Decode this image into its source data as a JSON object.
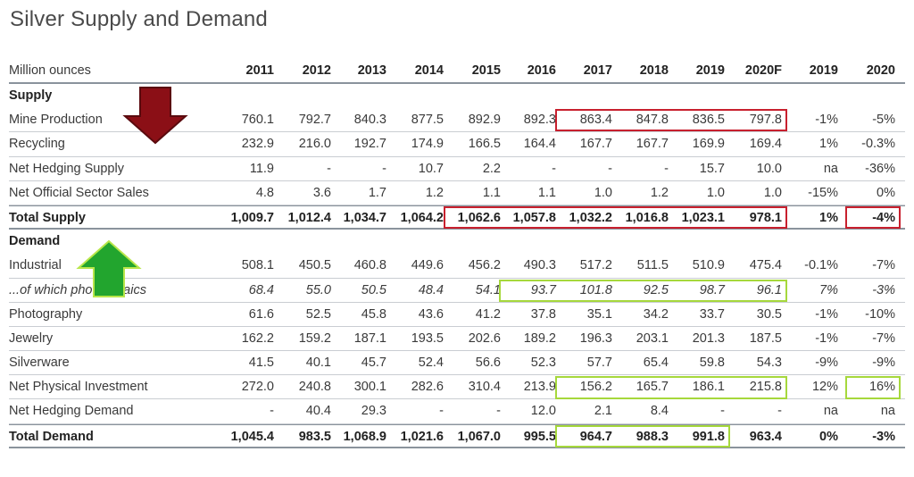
{
  "title": "Silver Supply and Demand",
  "header": {
    "label": "Million ounces",
    "columns": [
      "2011",
      "2012",
      "2013",
      "2014",
      "2015",
      "2016",
      "2017",
      "2018",
      "2019",
      "2020F",
      "2019",
      "2020"
    ]
  },
  "rows": [
    {
      "type": "section",
      "label": "Supply"
    },
    {
      "type": "data",
      "label": "Mine Production",
      "values": [
        "760.1",
        "792.7",
        "840.3",
        "877.5",
        "892.9",
        "892.3",
        "863.4",
        "847.8",
        "836.5",
        "797.8",
        "-1%",
        "-5%"
      ]
    },
    {
      "type": "data",
      "label": "Recycling",
      "values": [
        "232.9",
        "216.0",
        "192.7",
        "174.9",
        "166.5",
        "164.4",
        "167.7",
        "167.7",
        "169.9",
        "169.4",
        "1%",
        "-0.3%"
      ]
    },
    {
      "type": "data",
      "label": "Net Hedging Supply",
      "values": [
        "11.9",
        "-",
        "-",
        "10.7",
        "2.2",
        "-",
        "-",
        "-",
        "15.7",
        "10.0",
        "na",
        "-36%"
      ]
    },
    {
      "type": "data",
      "label": "Net Official Sector Sales",
      "values": [
        "4.8",
        "3.6",
        "1.7",
        "1.2",
        "1.1",
        "1.1",
        "1.0",
        "1.2",
        "1.0",
        "1.0",
        "-15%",
        "0%"
      ]
    },
    {
      "type": "total",
      "label": "Total Supply",
      "values": [
        "1,009.7",
        "1,012.4",
        "1,034.7",
        "1,064.2",
        "1,062.6",
        "1,057.8",
        "1,032.2",
        "1,016.8",
        "1,023.1",
        "978.1",
        "1%",
        "-4%"
      ]
    },
    {
      "type": "section",
      "label": "Demand"
    },
    {
      "type": "data",
      "label": "Industrial",
      "values": [
        "508.1",
        "450.5",
        "460.8",
        "449.6",
        "456.2",
        "490.3",
        "517.2",
        "511.5",
        "510.9",
        "475.4",
        "-0.1%",
        "-7%"
      ]
    },
    {
      "type": "italic",
      "label": "...of which photovoltaics",
      "values": [
        "68.4",
        "55.0",
        "50.5",
        "48.4",
        "54.1",
        "93.7",
        "101.8",
        "92.5",
        "98.7",
        "96.1",
        "7%",
        "-3%"
      ]
    },
    {
      "type": "data",
      "label": "Photography",
      "values": [
        "61.6",
        "52.5",
        "45.8",
        "43.6",
        "41.2",
        "37.8",
        "35.1",
        "34.2",
        "33.7",
        "30.5",
        "-1%",
        "-10%"
      ]
    },
    {
      "type": "data",
      "label": "Jewelry",
      "values": [
        "162.2",
        "159.2",
        "187.1",
        "193.5",
        "202.6",
        "189.2",
        "196.3",
        "203.1",
        "201.3",
        "187.5",
        "-1%",
        "-7%"
      ]
    },
    {
      "type": "data",
      "label": "Silverware",
      "values": [
        "41.5",
        "40.1",
        "45.7",
        "52.4",
        "56.6",
        "52.3",
        "57.7",
        "65.4",
        "59.8",
        "54.3",
        "-9%",
        "-9%"
      ]
    },
    {
      "type": "data",
      "label": "Net Physical Investment",
      "values": [
        "272.0",
        "240.8",
        "300.1",
        "282.6",
        "310.4",
        "213.9",
        "156.2",
        "165.7",
        "186.1",
        "215.8",
        "12%",
        "16%"
      ]
    },
    {
      "type": "data",
      "label": "Net Hedging Demand",
      "values": [
        "-",
        "40.4",
        "29.3",
        "-",
        "-",
        "12.0",
        "2.1",
        "8.4",
        "-",
        "-",
        "na",
        "na"
      ]
    },
    {
      "type": "total",
      "label": "Total Demand",
      "values": [
        "1,045.4",
        "983.5",
        "1,068.9",
        "1,021.6",
        "1,067.0",
        "995.5",
        "964.7",
        "988.3",
        "991.8",
        "963.4",
        "0%",
        "-3%"
      ]
    }
  ],
  "highlights": [
    {
      "color": "#c8202e",
      "row": 1,
      "from": 6,
      "to": 9
    },
    {
      "color": "#c8202e",
      "row": 5,
      "from": 4,
      "to": 9
    },
    {
      "color": "#c8202e",
      "row": 5,
      "from": 11,
      "to": 11
    },
    {
      "color": "#a6d83c",
      "row": 8,
      "from": 5,
      "to": 9
    },
    {
      "color": "#a6d83c",
      "row": 12,
      "from": 6,
      "to": 9
    },
    {
      "color": "#a6d83c",
      "row": 12,
      "from": 11,
      "to": 11
    },
    {
      "color": "#a6d83c",
      "row": 14,
      "from": 6,
      "to": 8
    }
  ],
  "arrows": [
    {
      "direction": "down",
      "color": "#8b0f16",
      "label": "supply-down-arrow"
    },
    {
      "direction": "up",
      "color": "#22a52e",
      "label": "demand-up-arrow"
    }
  ],
  "chart_data": {
    "type": "table",
    "title": "Silver Supply and Demand",
    "unit": "Million ounces",
    "columns": [
      "2011",
      "2012",
      "2013",
      "2014",
      "2015",
      "2016",
      "2017",
      "2018",
      "2019",
      "2020F",
      "2019",
      "2020"
    ],
    "rows": [
      {
        "label": "Mine Production",
        "values": [
          760.1,
          792.7,
          840.3,
          877.5,
          892.9,
          892.3,
          863.4,
          847.8,
          836.5,
          797.8,
          "-1%",
          "-5%"
        ]
      },
      {
        "label": "Recycling",
        "values": [
          232.9,
          216.0,
          192.7,
          174.9,
          166.5,
          164.4,
          167.7,
          167.7,
          169.9,
          169.4,
          "1%",
          "-0.3%"
        ]
      },
      {
        "label": "Net Hedging Supply",
        "values": [
          11.9,
          null,
          null,
          10.7,
          2.2,
          null,
          null,
          null,
          15.7,
          10.0,
          "na",
          "-36%"
        ]
      },
      {
        "label": "Net Official Sector Sales",
        "values": [
          4.8,
          3.6,
          1.7,
          1.2,
          1.1,
          1.1,
          1.0,
          1.2,
          1.0,
          1.0,
          "-15%",
          "0%"
        ]
      },
      {
        "label": "Total Supply",
        "values": [
          1009.7,
          1012.4,
          1034.7,
          1064.2,
          1062.6,
          1057.8,
          1032.2,
          1016.8,
          1023.1,
          978.1,
          "1%",
          "-4%"
        ]
      },
      {
        "label": "Industrial",
        "values": [
          508.1,
          450.5,
          460.8,
          449.6,
          456.2,
          490.3,
          517.2,
          511.5,
          510.9,
          475.4,
          "-0.1%",
          "-7%"
        ]
      },
      {
        "label": "...of which photovoltaics",
        "values": [
          68.4,
          55.0,
          50.5,
          48.4,
          54.1,
          93.7,
          101.8,
          92.5,
          98.7,
          96.1,
          "7%",
          "-3%"
        ]
      },
      {
        "label": "Photography",
        "values": [
          61.6,
          52.5,
          45.8,
          43.6,
          41.2,
          37.8,
          35.1,
          34.2,
          33.7,
          30.5,
          "-1%",
          "-10%"
        ]
      },
      {
        "label": "Jewelry",
        "values": [
          162.2,
          159.2,
          187.1,
          193.5,
          202.6,
          189.2,
          196.3,
          203.1,
          201.3,
          187.5,
          "-1%",
          "-7%"
        ]
      },
      {
        "label": "Silverware",
        "values": [
          41.5,
          40.1,
          45.7,
          52.4,
          56.6,
          52.3,
          57.7,
          65.4,
          59.8,
          54.3,
          "-9%",
          "-9%"
        ]
      },
      {
        "label": "Net Physical Investment",
        "values": [
          272.0,
          240.8,
          300.1,
          282.6,
          310.4,
          213.9,
          156.2,
          165.7,
          186.1,
          215.8,
          "12%",
          "16%"
        ]
      },
      {
        "label": "Net Hedging Demand",
        "values": [
          null,
          40.4,
          29.3,
          null,
          null,
          12.0,
          2.1,
          8.4,
          null,
          null,
          "na",
          "na"
        ]
      },
      {
        "label": "Total Demand",
        "values": [
          1045.4,
          983.5,
          1068.9,
          1021.6,
          1067.0,
          995.5,
          964.7,
          988.3,
          991.8,
          963.4,
          "0%",
          "-3%"
        ]
      }
    ]
  }
}
